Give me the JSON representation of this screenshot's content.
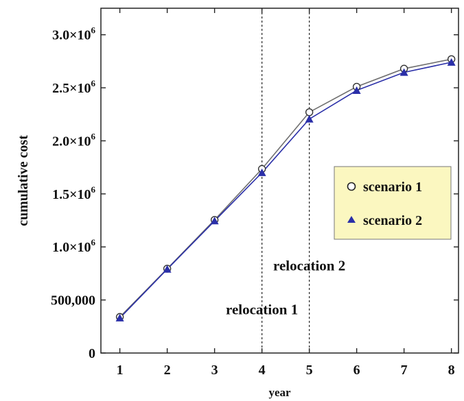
{
  "chart_data": {
    "type": "line",
    "title": "",
    "xlabel": "year",
    "ylabel": "cumulative cost",
    "x": [
      1,
      2,
      3,
      4,
      5,
      6,
      7,
      8
    ],
    "xlim": [
      0.6,
      8.15
    ],
    "ylim": [
      0,
      3250000
    ],
    "x_ticks": [
      {
        "value": 1,
        "label": "1"
      },
      {
        "value": 2,
        "label": "2"
      },
      {
        "value": 3,
        "label": "3"
      },
      {
        "value": 4,
        "label": "4"
      },
      {
        "value": 5,
        "label": "5"
      },
      {
        "value": 6,
        "label": "6"
      },
      {
        "value": 7,
        "label": "7"
      },
      {
        "value": 8,
        "label": "8"
      }
    ],
    "y_ticks": [
      {
        "value": 0,
        "mantissa": "0",
        "exponent": ""
      },
      {
        "value": 500000,
        "mantissa": "500,000",
        "exponent": ""
      },
      {
        "value": 1000000,
        "mantissa": "1.0×10",
        "exponent": "6"
      },
      {
        "value": 1500000,
        "mantissa": "1.5×10",
        "exponent": "6"
      },
      {
        "value": 2000000,
        "mantissa": "2.0×10",
        "exponent": "6"
      },
      {
        "value": 2500000,
        "mantissa": "2.5×10",
        "exponent": "6"
      },
      {
        "value": 3000000,
        "mantissa": "3.0×10",
        "exponent": "6"
      }
    ],
    "series": [
      {
        "name": "scenario 1",
        "marker": "circle",
        "color": "#6f6f6f",
        "values": [
          340000,
          795000,
          1255000,
          1735000,
          2270000,
          2510000,
          2680000,
          2770000
        ]
      },
      {
        "name": "scenario 2",
        "marker": "triangle",
        "color": "#2a2fa8",
        "values": [
          330000,
          790000,
          1245000,
          1700000,
          2205000,
          2475000,
          2645000,
          2740000
        ]
      }
    ],
    "vlines": [
      {
        "x": 4,
        "label": "relocation 1",
        "label_y": 365000
      },
      {
        "x": 5,
        "label": "relocation 2",
        "label_y": 780000
      }
    ],
    "grid": false,
    "legend_position": "right"
  }
}
